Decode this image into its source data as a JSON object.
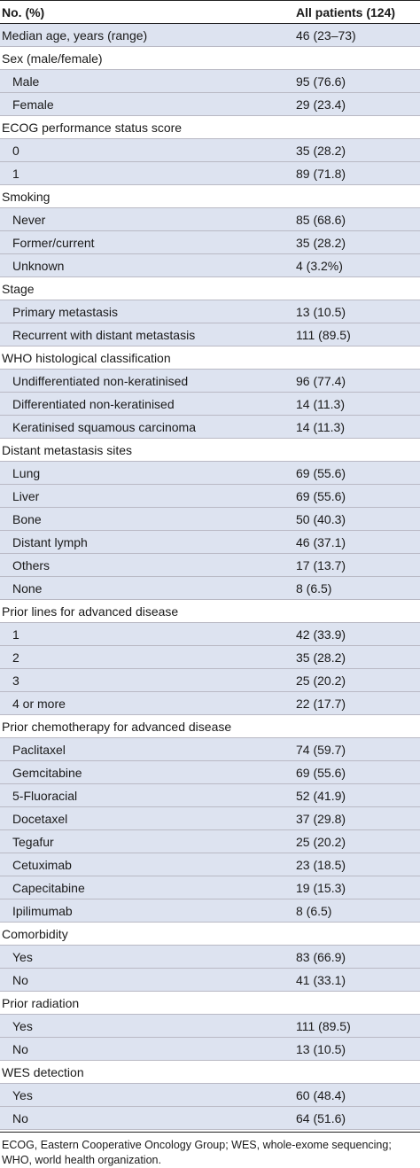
{
  "header": {
    "col1": "No. (%)",
    "col2": "All patients (124)"
  },
  "rows": [
    {
      "label": "Median age, years (range)",
      "value": "46 (23–73)",
      "kind": "top"
    },
    {
      "label": "Sex (male/female)",
      "value": "",
      "kind": "cat"
    },
    {
      "label": "Male",
      "value": "95 (76.6)",
      "kind": "sub"
    },
    {
      "label": "Female",
      "value": "29 (23.4)",
      "kind": "sub"
    },
    {
      "label": "ECOG performance status score",
      "value": "",
      "kind": "cat"
    },
    {
      "label": "0",
      "value": "35 (28.2)",
      "kind": "sub"
    },
    {
      "label": "1",
      "value": "89 (71.8)",
      "kind": "sub"
    },
    {
      "label": "Smoking",
      "value": "",
      "kind": "cat"
    },
    {
      "label": "Never",
      "value": "85 (68.6)",
      "kind": "sub"
    },
    {
      "label": "Former/current",
      "value": "35 (28.2)",
      "kind": "sub"
    },
    {
      "label": "Unknown",
      "value": "4 (3.2%)",
      "kind": "sub"
    },
    {
      "label": "Stage",
      "value": "",
      "kind": "cat"
    },
    {
      "label": "Primary metastasis",
      "value": "13 (10.5)",
      "kind": "sub"
    },
    {
      "label": "Recurrent with distant metastasis",
      "value": "111 (89.5)",
      "kind": "sub"
    },
    {
      "label": "WHO histological classification",
      "value": "",
      "kind": "cat"
    },
    {
      "label": "Undifferentiated non-keratinised",
      "value": "96 (77.4)",
      "kind": "sub"
    },
    {
      "label": "Differentiated non-keratinised",
      "value": "14 (11.3)",
      "kind": "sub"
    },
    {
      "label": "Keratinised squamous carcinoma",
      "value": "14 (11.3)",
      "kind": "sub"
    },
    {
      "label": "Distant metastasis sites",
      "value": "",
      "kind": "cat"
    },
    {
      "label": "Lung",
      "value": "69 (55.6)",
      "kind": "sub"
    },
    {
      "label": "Liver",
      "value": "69 (55.6)",
      "kind": "sub"
    },
    {
      "label": "Bone",
      "value": "50 (40.3)",
      "kind": "sub"
    },
    {
      "label": "Distant lymph",
      "value": "46 (37.1)",
      "kind": "sub"
    },
    {
      "label": "Others",
      "value": "17 (13.7)",
      "kind": "sub"
    },
    {
      "label": "None",
      "value": "8 (6.5)",
      "kind": "sub"
    },
    {
      "label": "Prior lines for advanced disease",
      "value": "",
      "kind": "cat"
    },
    {
      "label": "1",
      "value": "42 (33.9)",
      "kind": "sub"
    },
    {
      "label": "2",
      "value": "35 (28.2)",
      "kind": "sub"
    },
    {
      "label": "3",
      "value": "25 (20.2)",
      "kind": "sub"
    },
    {
      "label": "4 or more",
      "value": "22 (17.7)",
      "kind": "sub"
    },
    {
      "label": "Prior chemotherapy for advanced disease",
      "value": "",
      "kind": "cat"
    },
    {
      "label": "Paclitaxel",
      "value": "74 (59.7)",
      "kind": "sub"
    },
    {
      "label": "Gemcitabine",
      "value": "69 (55.6)",
      "kind": "sub"
    },
    {
      "label": "5-Fluoracial",
      "value": "52 (41.9)",
      "kind": "sub"
    },
    {
      "label": "Docetaxel",
      "value": "37 (29.8)",
      "kind": "sub"
    },
    {
      "label": "Tegafur",
      "value": "25 (20.2)",
      "kind": "sub"
    },
    {
      "label": "Cetuximab",
      "value": "23 (18.5)",
      "kind": "sub"
    },
    {
      "label": "Capecitabine",
      "value": "19 (15.3)",
      "kind": "sub"
    },
    {
      "label": "Ipilimumab",
      "value": "8 (6.5)",
      "kind": "sub"
    },
    {
      "label": "Comorbidity",
      "value": "",
      "kind": "cat"
    },
    {
      "label": "Yes",
      "value": "83 (66.9)",
      "kind": "sub"
    },
    {
      "label": "No",
      "value": "41 (33.1)",
      "kind": "sub"
    },
    {
      "label": "Prior radiation",
      "value": "",
      "kind": "cat"
    },
    {
      "label": "Yes",
      "value": "111 (89.5)",
      "kind": "sub"
    },
    {
      "label": "No",
      "value": "13 (10.5)",
      "kind": "sub"
    },
    {
      "label": "WES detection",
      "value": "",
      "kind": "cat"
    },
    {
      "label": "Yes",
      "value": "60 (48.4)",
      "kind": "sub"
    },
    {
      "label": "No",
      "value": "64 (51.6)",
      "kind": "sub"
    }
  ],
  "footnote": "ECOG, Eastern Cooperative Oncology Group; WES, whole-exome sequencing; WHO, world health organization."
}
